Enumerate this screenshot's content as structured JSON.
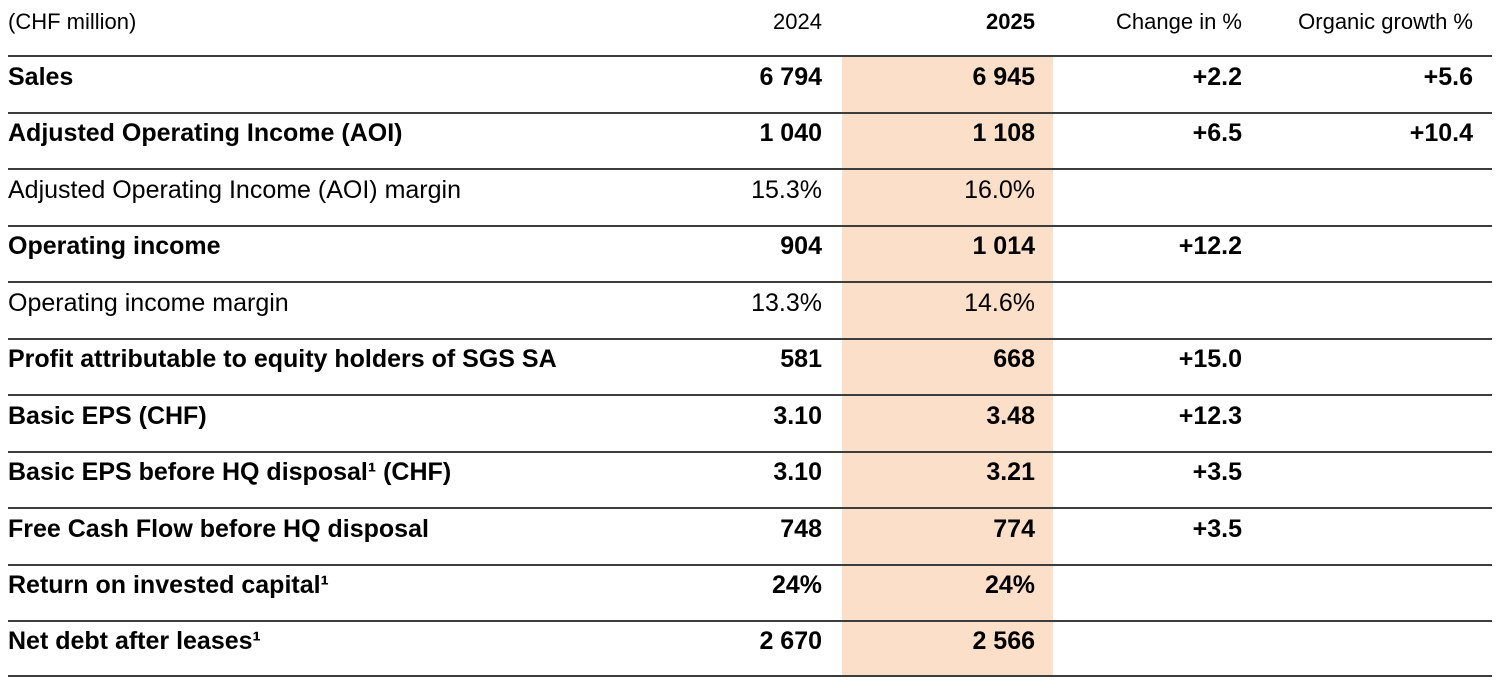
{
  "table": {
    "unit_label": "(CHF million)",
    "highlight_color": "#fcdfc9",
    "columns": {
      "c2024": "2024",
      "c2025": "2025",
      "change": "Change in %",
      "organic": "Organic growth %"
    },
    "rows": [
      {
        "label": "Sales",
        "y2024": "6 794",
        "y2025": "6 945",
        "change": "+2.2",
        "organic": "+5.6"
      },
      {
        "label": "Adjusted Operating Income (AOI)",
        "y2024": "1 040",
        "y2025": "1 108",
        "change": "+6.5",
        "organic": "+10.4"
      },
      {
        "label": "Adjusted Operating Income (AOI) margin",
        "y2024": "15.3%",
        "y2025": "16.0%",
        "change": "",
        "organic": ""
      },
      {
        "label": "Operating income",
        "y2024": "904",
        "y2025": "1 014",
        "change": "+12.2",
        "organic": ""
      },
      {
        "label": "Operating income margin",
        "y2024": "13.3%",
        "y2025": "14.6%",
        "change": "",
        "organic": ""
      },
      {
        "label": "Profit attributable to equity holders of SGS SA",
        "y2024": "581",
        "y2025": "668",
        "change": "+15.0",
        "organic": ""
      },
      {
        "label": "Basic EPS (CHF)",
        "y2024": "3.10",
        "y2025": "3.48",
        "change": "+12.3",
        "organic": ""
      },
      {
        "label": "Basic EPS before HQ disposal¹ (CHF)",
        "y2024": "3.10",
        "y2025": "3.21",
        "change": "+3.5",
        "organic": ""
      },
      {
        "label": "Free Cash Flow before HQ disposal",
        "y2024": "748",
        "y2025": "774",
        "change": "+3.5",
        "organic": ""
      },
      {
        "label": "Return on invested capital¹",
        "y2024": "24%",
        "y2025": "24%",
        "change": "",
        "organic": ""
      },
      {
        "label": "Net debt after leases¹",
        "y2024": "2 670",
        "y2025": "2 566",
        "change": "",
        "organic": ""
      }
    ]
  }
}
